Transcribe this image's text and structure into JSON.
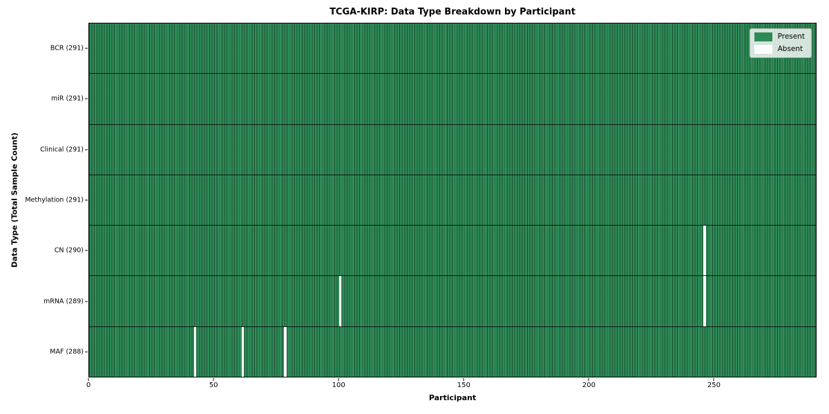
{
  "title": "TCGA-KIRP: Data Type Breakdown by Participant",
  "colors": {
    "present": "#2e8b57",
    "absent": "#ffffff",
    "row_separator": "#1a1a1a",
    "figure_background": "#ffffff"
  },
  "chart_data": {
    "type": "heatmap",
    "title": "TCGA-KIRP: Data Type Breakdown by Participant",
    "xlabel": "Participant",
    "ylabel": "Data Type (Total Sample Count)",
    "x_range": [
      0,
      291
    ],
    "n_participants": 291,
    "x_ticks": [
      0,
      50,
      100,
      150,
      200,
      250
    ],
    "grid": false,
    "legend_position": "upper right",
    "legend": [
      {
        "label": "Present",
        "color": "#2e8b57"
      },
      {
        "label": "Absent",
        "color": "#ffffff"
      }
    ],
    "rows": [
      {
        "label": "BCR (291)",
        "data_type": "BCR",
        "total_samples": 291,
        "absent_participants": []
      },
      {
        "label": "miR (291)",
        "data_type": "miR",
        "total_samples": 291,
        "absent_participants": []
      },
      {
        "label": "Clinical (291)",
        "data_type": "Clinical",
        "total_samples": 291,
        "absent_participants": []
      },
      {
        "label": "Methylation (291)",
        "data_type": "Methylation",
        "total_samples": 291,
        "absent_participants": []
      },
      {
        "label": "CN (290)",
        "data_type": "CN",
        "total_samples": 290,
        "absent_participants": [
          246
        ]
      },
      {
        "label": "mRNA (289)",
        "data_type": "mRNA",
        "total_samples": 289,
        "absent_participants": [
          100,
          246
        ]
      },
      {
        "label": "MAF (288)",
        "data_type": "MAF",
        "total_samples": 288,
        "absent_participants": [
          42,
          61,
          78
        ]
      }
    ]
  }
}
